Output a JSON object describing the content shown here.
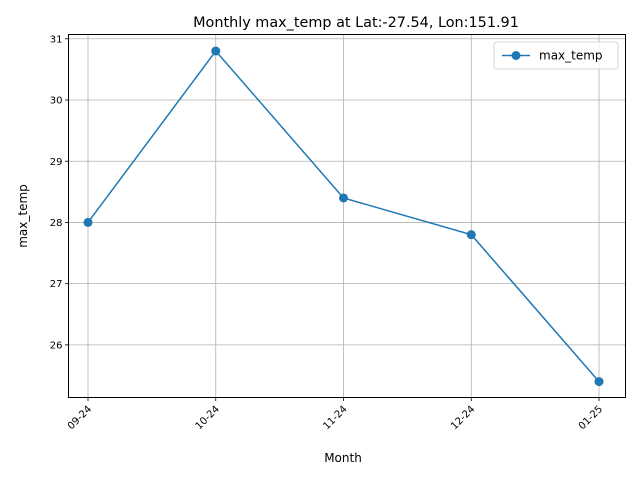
{
  "chart_data": {
    "type": "line",
    "title": "Monthly max_temp at Lat:-27.54, Lon:151.91",
    "xlabel": "Month",
    "ylabel": "max_temp",
    "categories": [
      "09-24",
      "10-24",
      "11-24",
      "12-24",
      "01-25"
    ],
    "series": [
      {
        "name": "max_temp",
        "values": [
          28.0,
          30.8,
          28.4,
          27.8,
          25.4
        ],
        "color": "#1f77b4"
      }
    ],
    "ylim": [
      25.14,
      31.07
    ],
    "yticks": [
      26,
      27,
      28,
      29,
      30,
      31
    ],
    "grid": true,
    "legend_position": "top-right",
    "marker": "circle"
  }
}
